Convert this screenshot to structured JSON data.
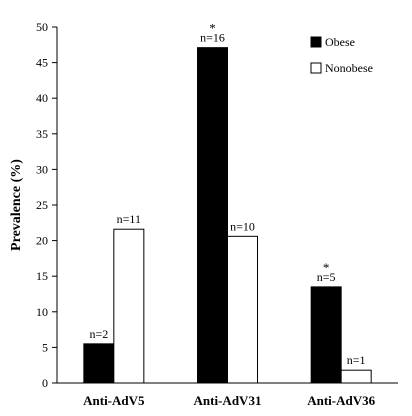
{
  "chart_data": {
    "type": "bar",
    "title": "",
    "xlabel": "",
    "ylabel": "Prevalence (%)",
    "ylim": [
      0,
      50
    ],
    "yticks": [
      0,
      5,
      10,
      15,
      20,
      25,
      30,
      35,
      40,
      45,
      50
    ],
    "grid": false,
    "legend_position": "top-right",
    "categories": [
      "Anti-AdV5",
      "Anti-AdV31",
      "Anti-AdV36"
    ],
    "series": [
      {
        "name": "Obese",
        "fill": "#000000",
        "values": [
          5.5,
          47.1,
          13.5
        ],
        "labels": [
          "n=2",
          "n=16",
          "n=5"
        ],
        "significance": [
          "",
          "*",
          "*"
        ]
      },
      {
        "name": "Nonobese",
        "fill": "#ffffff",
        "values": [
          21.6,
          20.6,
          1.8
        ],
        "labels": [
          "n=11",
          "n=10",
          "n=1"
        ],
        "significance": [
          "",
          "",
          ""
        ]
      }
    ]
  }
}
